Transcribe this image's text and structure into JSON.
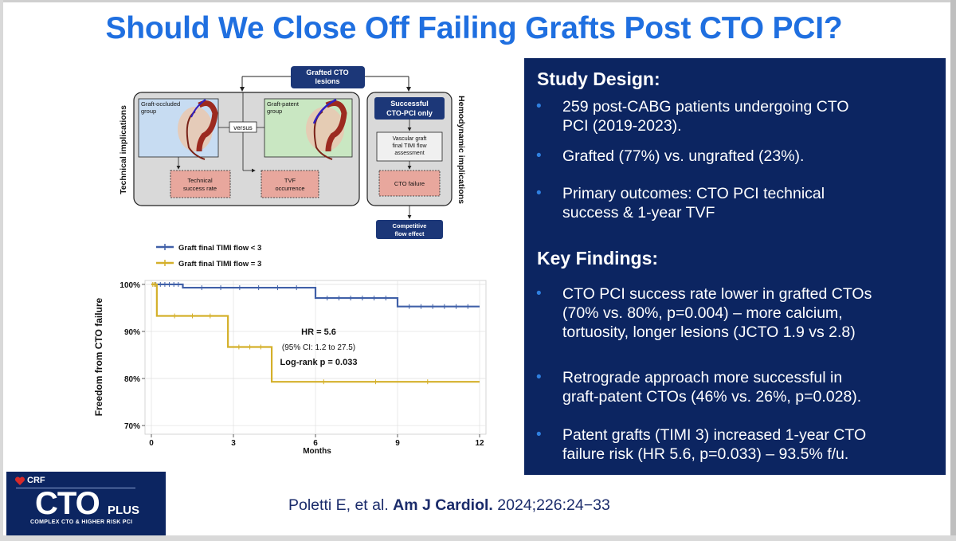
{
  "title": "Should We Close Off Failing Grafts Post CTO PCI?",
  "diagram": {
    "top_box": "Grafted CTO lesions",
    "left_side_label": "Technical implications",
    "right_side_label": "Hemodynamic implications",
    "graft_occluded": "Graft-occluded group",
    "graft_patent": "Graft-patent group",
    "versus": "versus",
    "technical_success": "Technical success rate",
    "tvf": "TVF occurrence",
    "successful": "Successful CTO-PCI only",
    "vascular": "Vascular graft final TIMI flow assessment",
    "cto_failure": "CTO failure",
    "competitive": "Competitive flow effect"
  },
  "legend": {
    "lt3": "Graft final TIMI flow < 3",
    "eq3": "Graft final TIMI flow = 3"
  },
  "chart_data": {
    "type": "line",
    "xlabel": "Months",
    "ylabel": "Freedom from CTO failure",
    "xlim": [
      0,
      12
    ],
    "ylim": [
      69,
      100.5
    ],
    "x_ticks": [
      0,
      3,
      6,
      9,
      12
    ],
    "y_ticks": [
      70,
      80,
      90,
      100
    ],
    "y_tick_labels": [
      "70%",
      "80%",
      "90%",
      "100%"
    ],
    "series": [
      {
        "name": "Graft final TIMI flow < 3",
        "color": "#4060a8",
        "step": true,
        "x": [
          0,
          1.15,
          6.0,
          9.0,
          12.0
        ],
        "y": [
          100,
          99.3,
          97.1,
          95.3,
          95.3
        ]
      },
      {
        "name": "Graft final TIMI flow = 3",
        "color": "#d4b02a",
        "step": true,
        "x": [
          0,
          0.2,
          2.8,
          4.4,
          12.0
        ],
        "y": [
          100,
          93.3,
          86.7,
          79.3,
          79.3
        ]
      }
    ],
    "annotation": {
      "hr": "HR = 5.6",
      "ci": "(95% CI: 1.2 to 27.5)",
      "logrank": "Log-rank p = 0.033"
    }
  },
  "panel": {
    "study_design_heading": "Study Design:",
    "design_bullets": [
      [
        "259 post-CABG patients undergoing CTO",
        "PCI (2019-2023)."
      ],
      [
        "Grafted (77%) vs. ungrafted (23%)."
      ],
      [
        "Primary outcomes: CTO PCI technical",
        "success & 1-year TVF"
      ]
    ],
    "key_findings_heading": "Key Findings:",
    "finding_bullets": [
      [
        "CTO PCI success rate lower in grafted CTOs",
        "(70% vs. 80%, p=0.004) – more calcium,",
        "tortuosity, longer lesions  (JCTO 1.9 vs 2.8)"
      ],
      [
        "Retrograde approach more successful in",
        "graft-patent CTOs (46% vs. 26%, p=0.028)."
      ],
      [
        "Patent grafts (TIMI 3) increased 1-year CTO",
        "failure risk (HR 5.6, p=0.033) – 93.5% f/u."
      ]
    ]
  },
  "citation": {
    "authors": "Poletti E, et al.",
    "journal": "Am J Cardiol.",
    "ref": "2024;226:24−33"
  },
  "logo": {
    "crf": "CRF",
    "cto": "CTO",
    "plus": "PLUS",
    "sub": "COMPLEX CTO & HIGHER RISK PCI"
  }
}
